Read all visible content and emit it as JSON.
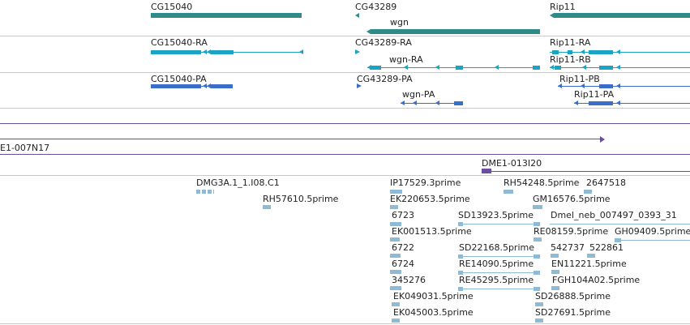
{
  "colors": {
    "gene": "#2e8b8a",
    "transcript_ra": "#1aa3c4",
    "transcript_pa": "#3a6ec8",
    "clone": "#6a4ea0",
    "est": "#8fbad6",
    "divider": "#c9c9c9"
  },
  "genes_track": {
    "features": [
      {
        "label": "CG15040",
        "strand": "-"
      },
      {
        "label": "CG43289",
        "strand": "-"
      },
      {
        "label": "wgn",
        "strand": "-"
      },
      {
        "label": "Rip11",
        "strand": "-"
      }
    ]
  },
  "transcripts_track": {
    "features": [
      {
        "label": "CG15040-RA"
      },
      {
        "label": "CG43289-RA"
      },
      {
        "label": "wgn-RA"
      },
      {
        "label": "Rip11-RA"
      },
      {
        "label": "Rip11-RB"
      }
    ]
  },
  "proteins_track": {
    "features": [
      {
        "label": "CG15040-PA"
      },
      {
        "label": "CG43289-PA"
      },
      {
        "label": "wgn-PA"
      },
      {
        "label": "Rip11-PB"
      },
      {
        "label": "Rip11-PA"
      }
    ]
  },
  "clones_track": {
    "features": [
      {
        "label": "E1-007N17"
      },
      {
        "label": "DME1-013I20"
      }
    ]
  },
  "est_track": {
    "features": [
      {
        "label": "DMG3A.1_1.I08.C1"
      },
      {
        "label": "RH57610.5prime"
      },
      {
        "label": "IP17529.3prime"
      },
      {
        "label": "EK220653.5prime"
      },
      {
        "label": "6723"
      },
      {
        "label": "EK001513.5prime"
      },
      {
        "label": "6722"
      },
      {
        "label": "6724"
      },
      {
        "label": "345276"
      },
      {
        "label": "EK049031.5prime"
      },
      {
        "label": "EK045003.5prime"
      },
      {
        "label": "SD13923.5prime"
      },
      {
        "label": "SD22168.5prime"
      },
      {
        "label": "RE14090.5prime"
      },
      {
        "label": "RE45295.5prime"
      },
      {
        "label": "RH54248.5prime"
      },
      {
        "label": "2647518"
      },
      {
        "label": "GM16576.5prime"
      },
      {
        "label": "Dmel_neb_007497_0393_31"
      },
      {
        "label": "RE08159.5prime"
      },
      {
        "label": "GH09409.5prime"
      },
      {
        "label": "542737"
      },
      {
        "label": "522861"
      },
      {
        "label": "EN11221.5prime"
      },
      {
        "label": "FGH104A02.5prime"
      },
      {
        "label": "SD26888.5prime"
      },
      {
        "label": "SD27691.5prime"
      }
    ]
  }
}
